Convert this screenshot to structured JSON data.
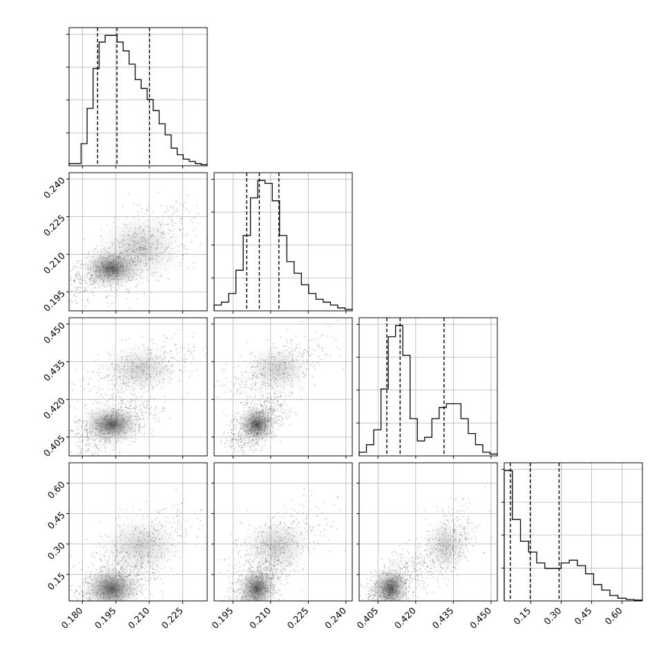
{
  "chart_data": {
    "type": "corner",
    "title": "",
    "parameters": [
      {
        "name": "",
        "range": [
          0.174,
          0.236
        ],
        "ticks": [
          "0.180",
          "0.195",
          "0.210",
          "0.225"
        ],
        "quantiles": [
          0.1868,
          0.1955,
          0.2101
        ],
        "hist_counts": [
          1,
          1,
          10,
          26,
          44,
          56,
          59,
          59,
          56,
          52,
          46,
          39,
          35,
          30,
          25,
          19,
          14,
          8,
          5,
          3,
          2,
          1,
          0.5
        ]
      },
      {
        "name": "",
        "range": [
          0.1875,
          0.2425
        ],
        "ticks": [
          "0.195",
          "0.210",
          "0.225",
          "0.240"
        ],
        "quantiles": [
          0.2005,
          0.2055,
          0.2133
        ],
        "hist_counts": [
          2,
          3,
          6,
          14,
          26,
          39,
          45,
          44,
          38,
          26,
          17,
          13,
          9,
          6,
          4,
          3,
          2,
          1,
          0.5
        ]
      },
      {
        "name": "",
        "range": [
          0.3975,
          0.4525
        ],
        "ticks": [
          "0.405",
          "0.420",
          "0.435",
          "0.450"
        ],
        "quantiles": [
          0.4085,
          0.4138,
          0.4313
        ],
        "hist_counts": [
          1,
          3,
          7,
          18,
          32,
          35,
          27,
          10,
          4,
          5,
          10,
          13,
          14,
          14,
          10,
          6,
          3,
          1,
          0.5
        ]
      },
      {
        "name": "",
        "range": [
          0.02,
          0.7
        ],
        "ticks": [
          "0.15",
          "0.30",
          "0.45",
          "0.60"
        ],
        "quantiles": [
          0.05,
          0.148,
          0.29
        ],
        "hist_counts": [
          48,
          30,
          22,
          18,
          14,
          12,
          12,
          14,
          15,
          13,
          10,
          6,
          4,
          2,
          1,
          0.5,
          0.3
        ]
      }
    ],
    "grid": true,
    "linestyle_quantiles": "dashed"
  }
}
